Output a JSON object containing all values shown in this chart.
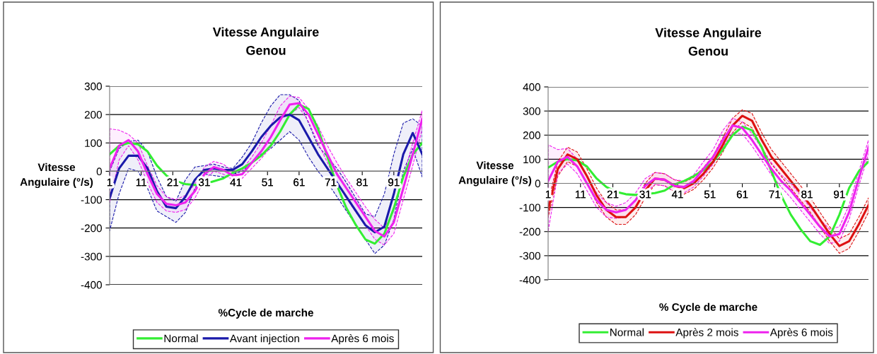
{
  "chart_data": [
    {
      "type": "line",
      "title": "Vitesse Angulaire\nGenou",
      "xlabel": "%Cycle de marche",
      "ylabel": "Vitesse\nAngulaire (°/s)",
      "x": [
        1,
        4,
        7,
        10,
        13,
        16,
        19,
        22,
        25,
        28,
        31,
        34,
        37,
        40,
        43,
        46,
        49,
        52,
        55,
        58,
        61,
        64,
        67,
        70,
        73,
        76,
        79,
        82,
        85,
        88,
        91,
        94,
        97,
        100
      ],
      "xlim": [
        1,
        100
      ],
      "xticks": [
        1,
        11,
        21,
        31,
        41,
        51,
        61,
        71,
        81,
        91
      ],
      "ylim": [
        -400,
        300
      ],
      "yticks": [
        -400,
        -300,
        -200,
        -100,
        0,
        100,
        200,
        300
      ],
      "grid": "y",
      "legend": "bottom",
      "marker": "none",
      "line_style": "solid",
      "series": [
        {
          "name": "Normal",
          "color": "#33ee33",
          "values": [
            60,
            90,
            100,
            95,
            70,
            20,
            -15,
            -35,
            -45,
            -48,
            -45,
            -35,
            -25,
            -5,
            10,
            30,
            55,
            90,
            140,
            200,
            235,
            220,
            150,
            50,
            -50,
            -130,
            -190,
            -240,
            -255,
            -220,
            -130,
            -20,
            60,
            100
          ]
        },
        {
          "name": "Avant injection",
          "color": "#1a1aaa",
          "values": [
            -95,
            10,
            55,
            55,
            10,
            -70,
            -125,
            -130,
            -90,
            -30,
            5,
            10,
            5,
            5,
            25,
            70,
            120,
            160,
            190,
            200,
            180,
            120,
            60,
            10,
            -40,
            -90,
            -140,
            -190,
            -215,
            -195,
            -80,
            60,
            135,
            60
          ],
          "upper": [
            0,
            80,
            105,
            110,
            70,
            -20,
            -90,
            -105,
            -30,
            15,
            20,
            25,
            15,
            10,
            50,
            100,
            170,
            230,
            270,
            270,
            250,
            170,
            90,
            50,
            10,
            -40,
            -95,
            -150,
            -160,
            -80,
            60,
            170,
            185,
            160
          ],
          "lower": [
            -210,
            -80,
            10,
            0,
            -60,
            -140,
            -160,
            -180,
            -145,
            -60,
            -10,
            -15,
            -20,
            -10,
            0,
            30,
            60,
            80,
            110,
            140,
            110,
            50,
            0,
            -40,
            -90,
            -140,
            -190,
            -240,
            -290,
            -260,
            -170,
            0,
            80,
            -20
          ]
        },
        {
          "name": "Après 6 mois",
          "color": "#ee22ee",
          "values": [
            10,
            90,
            110,
            70,
            -10,
            -80,
            -115,
            -120,
            -110,
            -70,
            -10,
            15,
            5,
            -15,
            -10,
            30,
            70,
            120,
            180,
            235,
            240,
            200,
            130,
            60,
            -10,
            -60,
            -110,
            -160,
            -210,
            -230,
            -180,
            -60,
            60,
            185
          ],
          "upper": [
            150,
            145,
            130,
            100,
            20,
            -50,
            -90,
            -100,
            -85,
            -45,
            15,
            35,
            25,
            0,
            5,
            50,
            100,
            160,
            230,
            265,
            260,
            220,
            160,
            90,
            30,
            -25,
            -75,
            -125,
            -170,
            -200,
            -140,
            -20,
            100,
            215
          ],
          "lower": [
            -110,
            40,
            90,
            40,
            -40,
            -110,
            -140,
            -145,
            -135,
            -95,
            -30,
            0,
            -10,
            -30,
            -25,
            10,
            45,
            85,
            140,
            200,
            225,
            175,
            100,
            30,
            -40,
            -95,
            -145,
            -190,
            -240,
            -260,
            -220,
            -100,
            20,
            150
          ]
        }
      ]
    },
    {
      "type": "line",
      "title": "Vitesse Angulaire\nGenou",
      "xlabel": "% Cycle de marche",
      "ylabel": "Vitesse\nAngulaire (°/s)",
      "x": [
        1,
        4,
        7,
        10,
        13,
        16,
        19,
        22,
        25,
        28,
        31,
        34,
        37,
        40,
        43,
        46,
        49,
        52,
        55,
        58,
        61,
        64,
        67,
        70,
        73,
        76,
        79,
        82,
        85,
        88,
        91,
        94,
        97,
        100
      ],
      "xlim": [
        1,
        100
      ],
      "xticks": [
        1,
        11,
        21,
        31,
        41,
        51,
        61,
        71,
        81,
        91
      ],
      "ylim": [
        -400,
        400
      ],
      "yticks": [
        -400,
        -300,
        -200,
        -100,
        0,
        100,
        200,
        300,
        400
      ],
      "grid": "y",
      "legend": "bottom",
      "marker": "none",
      "line_style": "solid",
      "series": [
        {
          "name": "Normal",
          "color": "#33ee33",
          "values": [
            65,
            90,
            100,
            95,
            70,
            20,
            -15,
            -35,
            -45,
            -48,
            -45,
            -40,
            -30,
            -5,
            10,
            30,
            55,
            90,
            140,
            200,
            235,
            220,
            150,
            50,
            -50,
            -130,
            -190,
            -240,
            -255,
            -220,
            -130,
            -20,
            50,
            90
          ]
        },
        {
          "name": "Après 2 mois",
          "color": "#dd1111",
          "values": [
            -110,
            60,
            120,
            100,
            30,
            -50,
            -110,
            -140,
            -140,
            -100,
            -30,
            20,
            15,
            -10,
            -20,
            0,
            40,
            90,
            160,
            240,
            280,
            260,
            180,
            110,
            60,
            10,
            -40,
            -90,
            -150,
            -210,
            -260,
            -240,
            -170,
            -90
          ],
          "upper": [
            -80,
            90,
            150,
            130,
            60,
            -20,
            -80,
            -110,
            -110,
            -70,
            0,
            45,
            40,
            15,
            5,
            25,
            65,
            115,
            190,
            270,
            305,
            290,
            210,
            140,
            90,
            40,
            -10,
            -60,
            -120,
            -180,
            -230,
            -210,
            -140,
            -60
          ],
          "lower": [
            -140,
            30,
            90,
            70,
            0,
            -80,
            -140,
            -170,
            -170,
            -130,
            -60,
            -5,
            -10,
            -35,
            -45,
            -25,
            15,
            65,
            130,
            210,
            255,
            230,
            150,
            80,
            30,
            -20,
            -70,
            -120,
            -180,
            -240,
            -290,
            -270,
            -200,
            -120
          ]
        },
        {
          "name": "Après 6 mois",
          "color": "#ee22ee",
          "values": [
            10,
            90,
            110,
            70,
            0,
            -70,
            -110,
            -120,
            -110,
            -70,
            -10,
            20,
            15,
            -10,
            -15,
            10,
            60,
            110,
            180,
            240,
            230,
            180,
            120,
            60,
            10,
            -30,
            -80,
            -130,
            -180,
            -220,
            -210,
            -120,
            20,
            150
          ],
          "upper": [
            160,
            140,
            145,
            100,
            30,
            -40,
            -80,
            -95,
            -80,
            -40,
            20,
            45,
            40,
            15,
            10,
            35,
            90,
            140,
            220,
            270,
            255,
            205,
            145,
            85,
            35,
            0,
            -50,
            -100,
            -150,
            -190,
            -180,
            -90,
            50,
            180
          ],
          "lower": [
            -200,
            40,
            80,
            40,
            -30,
            -100,
            -140,
            -145,
            -140,
            -100,
            -40,
            -5,
            -10,
            -35,
            -40,
            -15,
            30,
            80,
            150,
            210,
            205,
            155,
            95,
            35,
            -15,
            -60,
            -110,
            -160,
            -210,
            -250,
            -240,
            -150,
            -10,
            120
          ]
        }
      ]
    }
  ]
}
